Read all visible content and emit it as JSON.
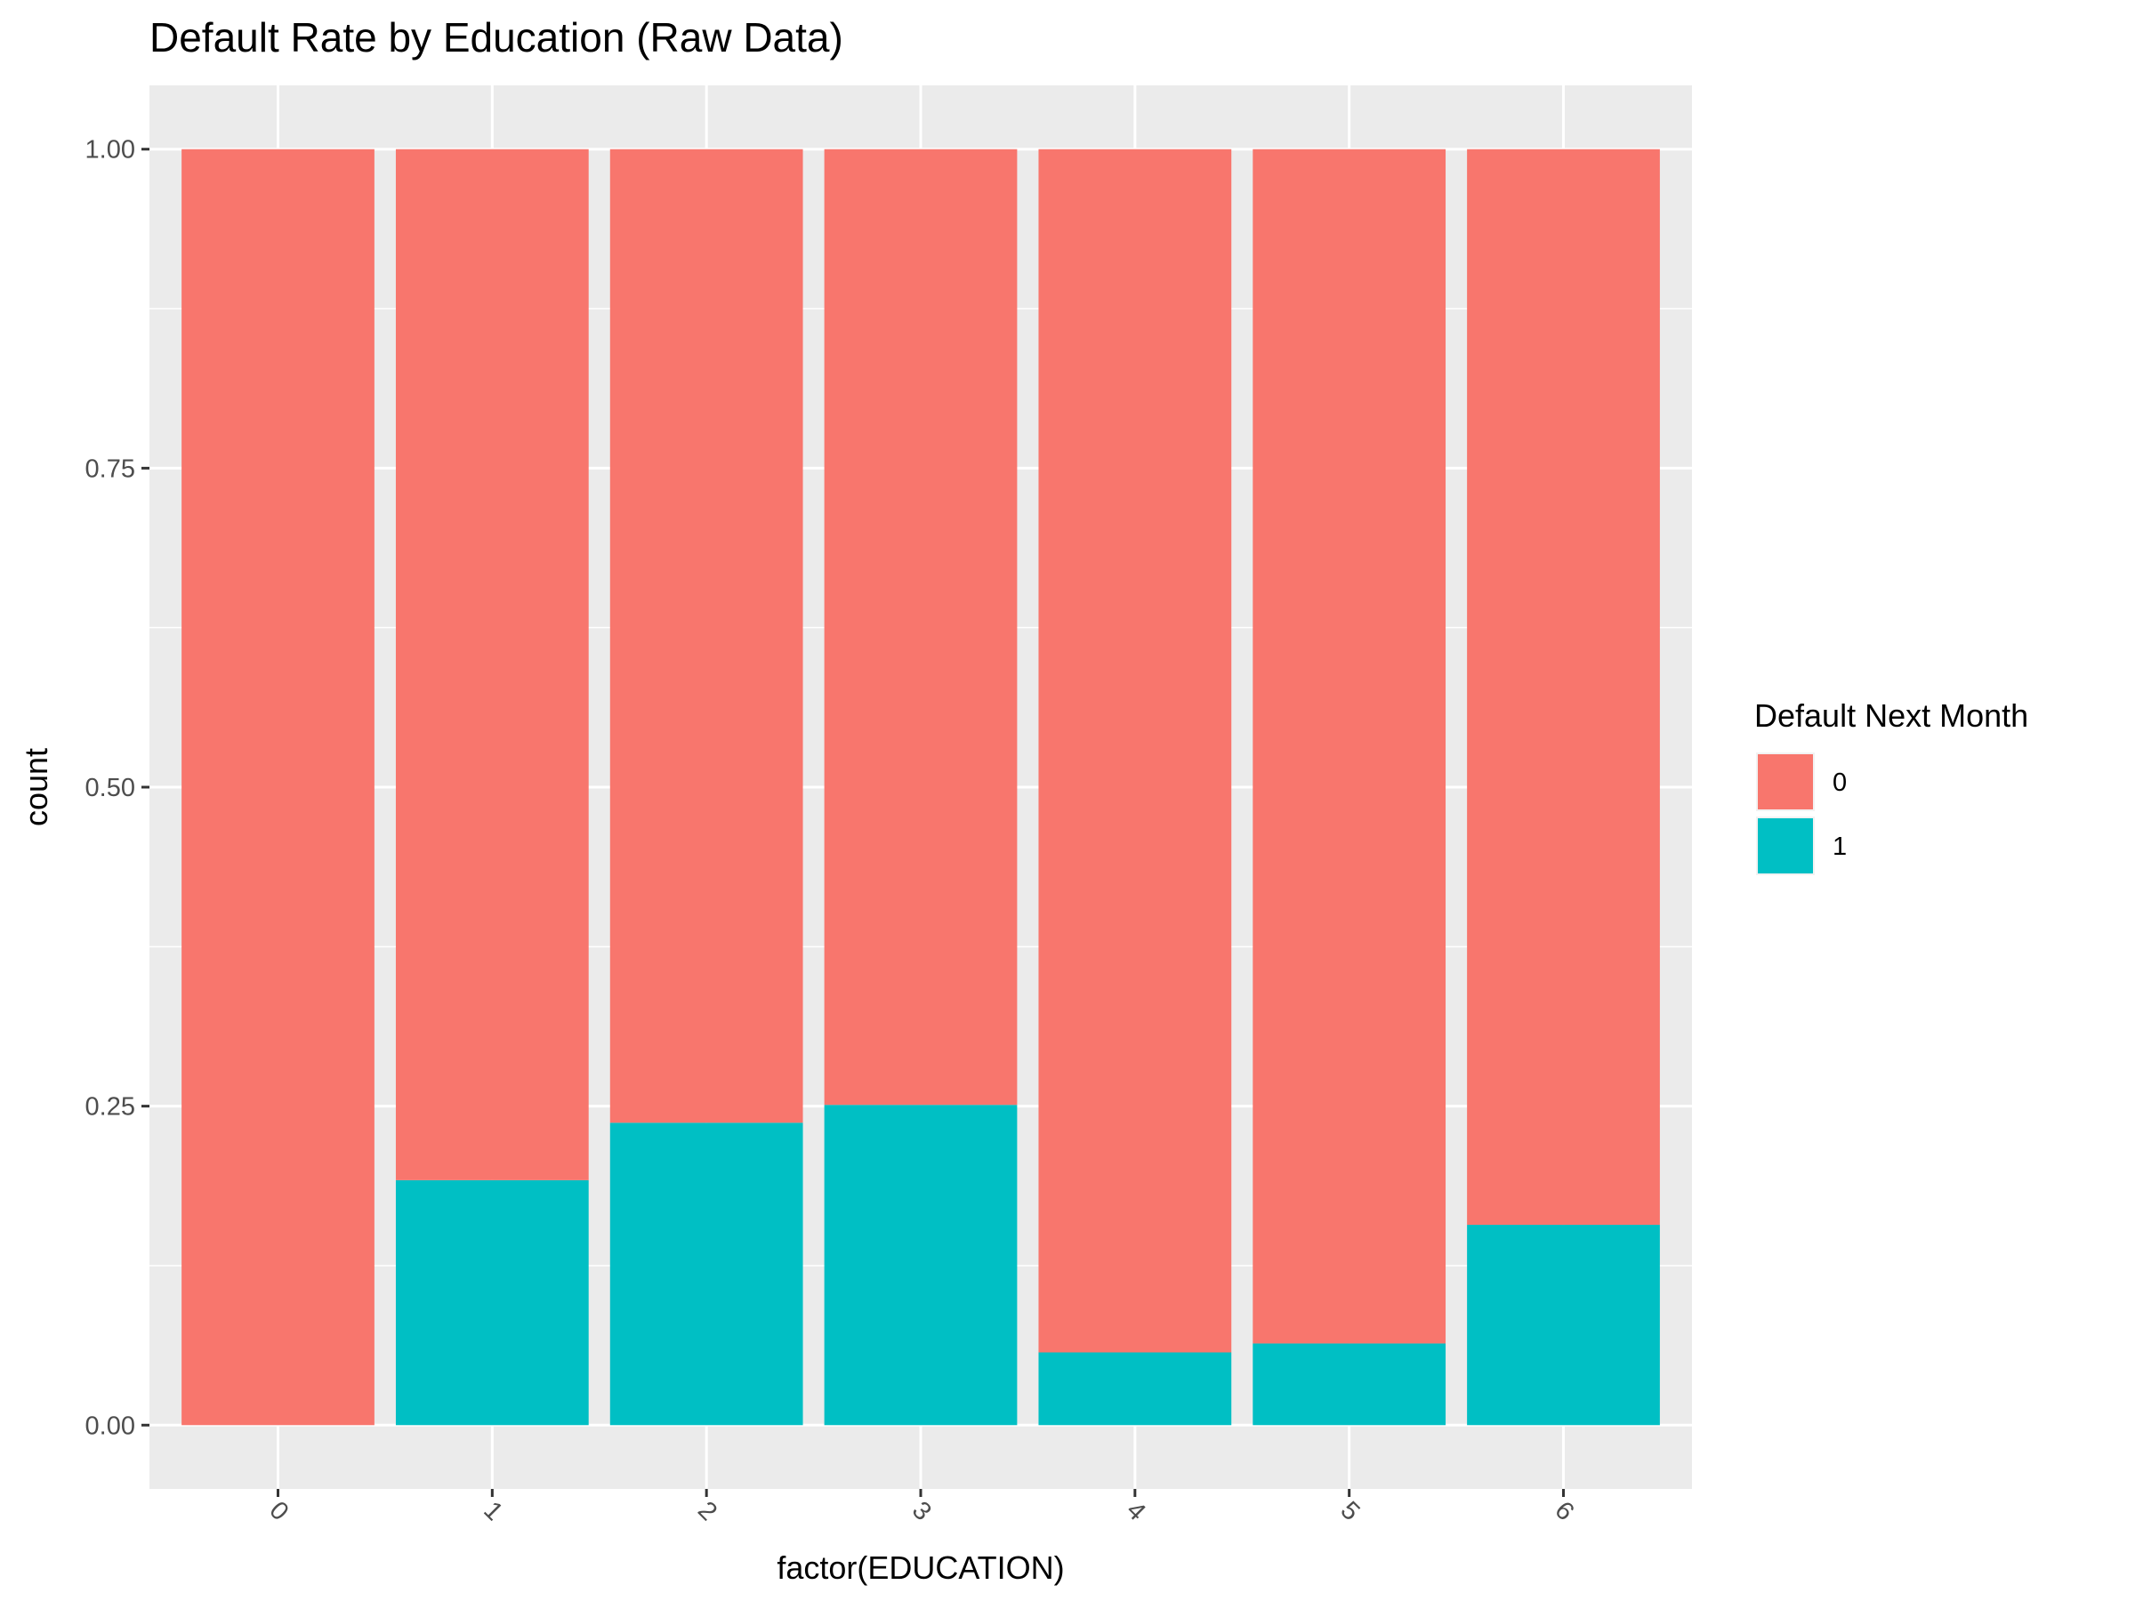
{
  "chart_data": {
    "type": "bar",
    "stacked": true,
    "position": "fill",
    "title": "Default Rate by Education (Raw Data)",
    "xlabel": "factor(EDUCATION)",
    "ylabel": "count",
    "categories": [
      "0",
      "1",
      "2",
      "3",
      "4",
      "5",
      "6"
    ],
    "series": [
      {
        "name": "0",
        "color": "#F8766D",
        "values": [
          1.0,
          0.808,
          0.763,
          0.749,
          0.943,
          0.936,
          0.843
        ]
      },
      {
        "name": "1",
        "color": "#00BFC4",
        "values": [
          0.0,
          0.192,
          0.237,
          0.251,
          0.057,
          0.064,
          0.157
        ]
      }
    ],
    "ylim": [
      -0.05,
      1.05
    ],
    "yticks": [
      0.0,
      0.25,
      0.5,
      0.75,
      1.0
    ],
    "ytick_labels": [
      "0.00",
      "0.25",
      "0.50",
      "0.75",
      "1.00"
    ],
    "grid": true,
    "x_tick_rotation_deg": 45,
    "legend": {
      "title": "Default Next Month",
      "placement": "right",
      "entries": [
        "0",
        "1"
      ]
    }
  }
}
